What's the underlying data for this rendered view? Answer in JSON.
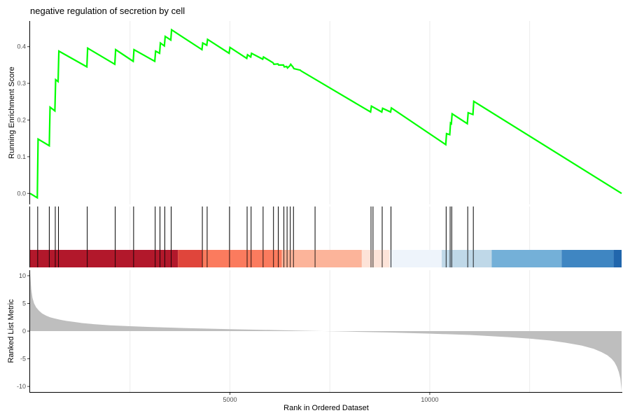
{
  "chart_data": {
    "type": "line",
    "title": "negative regulation of secretion by cell",
    "xlabel": "Rank in Ordered Dataset",
    "x_ticks": [
      5000,
      10000
    ],
    "xlim": [
      0,
      14800
    ],
    "grid": true,
    "panels": {
      "enrichment": {
        "ylabel": "Running Enrichment Score",
        "ylim": [
          -0.03,
          0.47
        ],
        "y_ticks": [
          0.0,
          0.1,
          0.2,
          0.3,
          0.4
        ],
        "line_color": "#00FF00",
        "series": [
          {
            "x": [
              0,
              180,
              200,
              480,
              500,
              620,
              640,
              700,
              720,
              1420,
              1440,
              2120,
              2140,
              2580,
              2600,
              3120,
              3140,
              3240,
              3260,
              3360,
              3380,
              3520,
              3540,
              4300,
              4320,
              4420,
              4440,
              4980,
              5000,
              5420,
              5440,
              5520,
              5540,
              5820,
              5840,
              6080,
              6100,
              6200,
              6220,
              6340,
              6360,
              6420,
              6440,
              6500,
              6520,
              6580,
              6600,
              6760,
              6780,
              8520,
              8540,
              8800,
              8820,
              9020,
              9040,
              10400,
              10420,
              10500,
              10520,
              10540,
              10560,
              10940,
              10960,
              11080,
              11100,
              14800
            ],
            "y": [
              0.0,
              -0.012,
              0.148,
              0.13,
              0.235,
              0.225,
              0.31,
              0.305,
              0.388,
              0.345,
              0.396,
              0.352,
              0.392,
              0.36,
              0.392,
              0.36,
              0.388,
              0.382,
              0.41,
              0.402,
              0.428,
              0.418,
              0.446,
              0.392,
              0.41,
              0.404,
              0.42,
              0.382,
              0.398,
              0.368,
              0.378,
              0.372,
              0.382,
              0.366,
              0.372,
              0.356,
              0.352,
              0.353,
              0.35,
              0.35,
              0.345,
              0.346,
              0.342,
              0.348,
              0.352,
              0.344,
              0.34,
              0.336,
              0.334,
              0.222,
              0.238,
              0.222,
              0.232,
              0.222,
              0.233,
              0.133,
              0.163,
              0.16,
              0.192,
              0.19,
              0.217,
              0.19,
              0.22,
              0.215,
              0.251,
              0.0
            ]
          }
        ]
      },
      "hits": {
        "positions": [
          190,
          480,
          630,
          710,
          1430,
          2130,
          2590,
          3130,
          3250,
          3370,
          3530,
          4310,
          4430,
          4990,
          5430,
          5530,
          5830,
          6090,
          6210,
          6350,
          6430,
          6510,
          6590,
          7130,
          8530,
          8580,
          8810,
          9030,
          10410,
          10510,
          10550,
          10950,
          11090
        ]
      },
      "rank_bar": {
        "segments": [
          {
            "from": 0,
            "to": 3700,
            "color": "#B2182B"
          },
          {
            "from": 3700,
            "to": 4300,
            "color": "#E0453B"
          },
          {
            "from": 4300,
            "to": 6300,
            "color": "#FB7B5E"
          },
          {
            "from": 6300,
            "to": 8300,
            "color": "#FCB49A"
          },
          {
            "from": 8300,
            "to": 9000,
            "color": "#FDE3D8"
          },
          {
            "from": 9000,
            "to": 10300,
            "color": "#EEF4FB"
          },
          {
            "from": 10300,
            "to": 11550,
            "color": "#BFD8E8"
          },
          {
            "from": 11550,
            "to": 13300,
            "color": "#74B0D8"
          },
          {
            "from": 13300,
            "to": 14600,
            "color": "#3F86C2"
          },
          {
            "from": 14600,
            "to": 14800,
            "color": "#2166AC"
          }
        ]
      },
      "ranked_metric": {
        "ylabel": "Ranked List Metric",
        "ylim": [
          -11,
          11
        ],
        "y_ticks": [
          10,
          5,
          0,
          -5,
          -10
        ],
        "fill_color": "#BEBEBE",
        "series": [
          {
            "x": [
              0,
              30,
              60,
              100,
              150,
              220,
              300,
              400,
              500,
              600,
              750,
              900,
              1100,
              1300,
              1600,
              2000,
              2500,
              3000,
              3500,
              4000,
              5000,
              6000,
              7000,
              8000,
              9000,
              10000,
              11000,
              12000,
              12500,
              13000,
              13400,
              13800,
              14100,
              14300,
              14450,
              14550,
              14620,
              14680,
              14730,
              14770,
              14800
            ],
            "y": [
              10.5,
              7.5,
              6.0,
              5.0,
              4.3,
              3.7,
              3.2,
              2.8,
              2.5,
              2.3,
              2.05,
              1.85,
              1.65,
              1.45,
              1.25,
              1.05,
              0.88,
              0.75,
              0.63,
              0.52,
              0.35,
              0.2,
              0.05,
              -0.1,
              -0.25,
              -0.45,
              -0.7,
              -1.1,
              -1.35,
              -1.7,
              -2.1,
              -2.6,
              -3.2,
              -3.8,
              -4.4,
              -5.0,
              -5.6,
              -6.4,
              -7.4,
              -8.6,
              -10.8
            ]
          }
        ]
      }
    }
  }
}
